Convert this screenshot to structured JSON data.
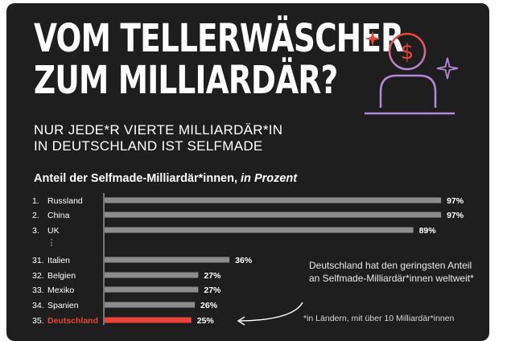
{
  "headline": {
    "line1": "VOM TELLERWÄSCHER",
    "line2": "ZUM MILLIARDÄR?"
  },
  "subheadline": {
    "line1": "NUR JEDE*R VIERTE MILLIARDÄR*IN",
    "line2": "IN DEUTSCHLAND IST SELFMADE"
  },
  "icon": "selfmade-millionaire-icon",
  "colors": {
    "background": "#1e1e1e",
    "bar": "#8c8c8c",
    "highlight": "#e8443a",
    "icon_red": "#e8443a",
    "icon_purple": "#b48ad6"
  },
  "chart_data": {
    "type": "bar",
    "orientation": "horizontal",
    "title": "Anteil der Selfmade-Milliardär*innen,",
    "title_emphasis": "in Prozent",
    "ellipsis_label": "⋮",
    "rows": [
      {
        "rank": "1.",
        "country": "Russland",
        "value": 97,
        "label": "97%"
      },
      {
        "rank": "2.",
        "country": "China",
        "value": 97,
        "label": "97%"
      },
      {
        "rank": "3.",
        "country": "UK",
        "value": 89,
        "label": "89%"
      },
      {
        "rank": "31.",
        "country": "Italien",
        "value": 36,
        "label": "36%"
      },
      {
        "rank": "32.",
        "country": "Belgien",
        "value": 27,
        "label": "27%"
      },
      {
        "rank": "33.",
        "country": "Mexiko",
        "value": 27,
        "label": "27%"
      },
      {
        "rank": "34.",
        "country": "Spanien",
        "value": 26,
        "label": "26%"
      },
      {
        "rank": "35.",
        "country": "Deutschland",
        "value": 25,
        "label": "25%",
        "highlight": true
      }
    ],
    "xlim": [
      0,
      100
    ]
  },
  "annotation": "Deutschland hat den geringsten Anteil an Selfmade-Milliardär*innen weltweit*",
  "footnote": "*in Ländern, mit über 10 Milliardär*innen"
}
